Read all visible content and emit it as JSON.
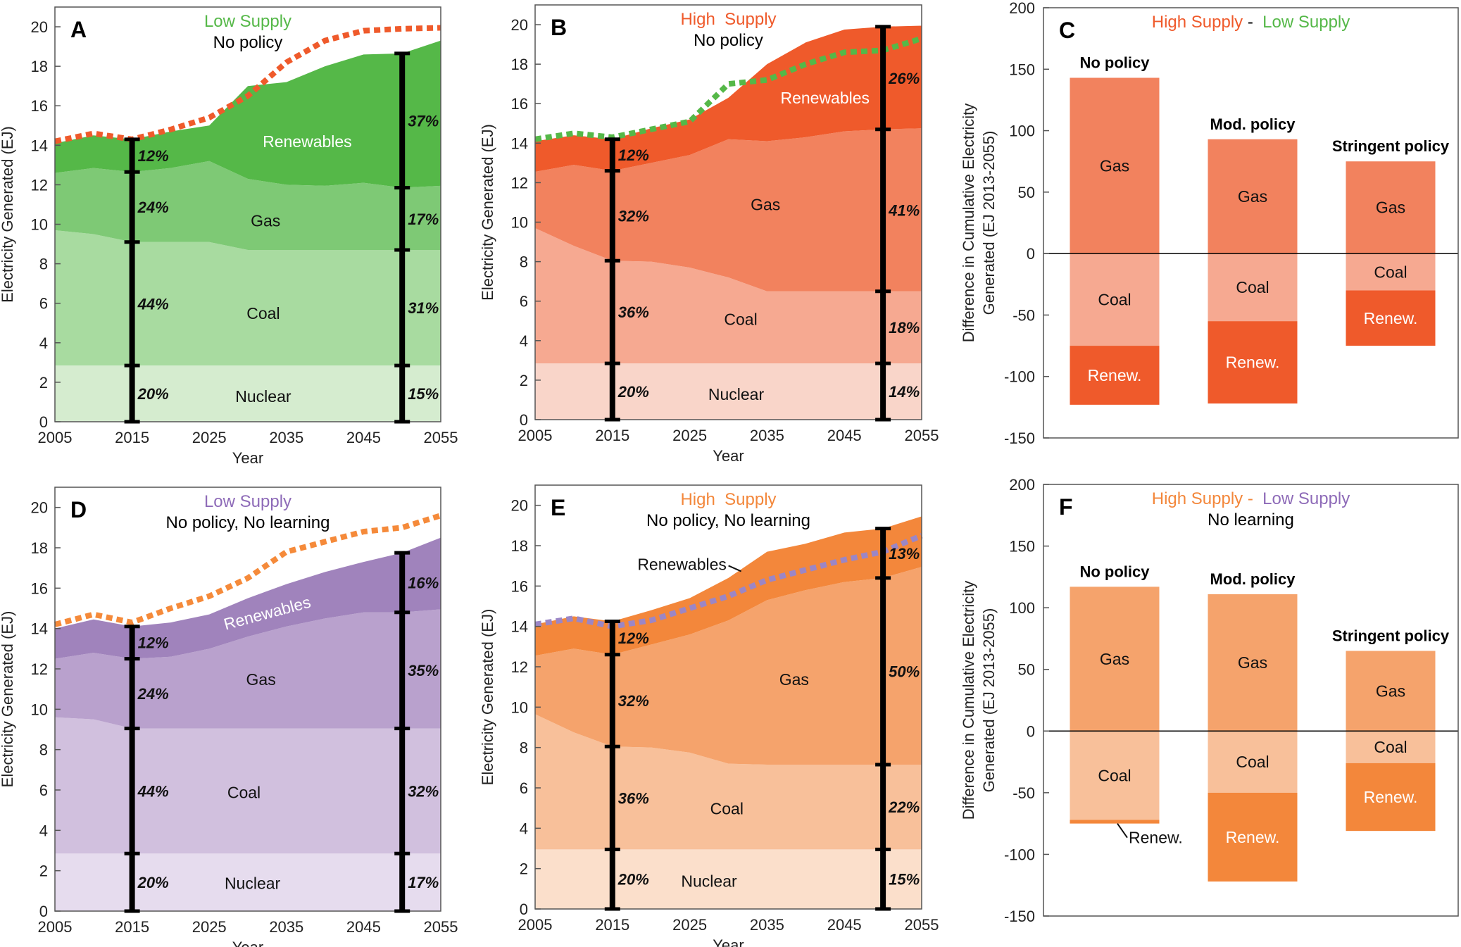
{
  "chart_data": [
    {
      "panel": "A",
      "type": "area",
      "stacked": true,
      "title_parts": [
        {
          "text": "Low Supply",
          "color": "#55b848"
        }
      ],
      "subtitle": "No policy",
      "xlabel": "Year",
      "ylabel": "Electricity Generated (EJ)",
      "xlim": [
        2005,
        2055
      ],
      "ylim": [
        0,
        21
      ],
      "xticks": [
        2005,
        2015,
        2025,
        2035,
        2045,
        2055
      ],
      "yticks": [
        0,
        2,
        4,
        6,
        8,
        10,
        12,
        14,
        16,
        18,
        20
      ],
      "x": [
        2005,
        2010,
        2015,
        2020,
        2025,
        2030,
        2035,
        2040,
        2045,
        2050,
        2055
      ],
      "series": [
        {
          "name": "Nuclear",
          "color": "#d5eccf",
          "values": [
            2.85,
            2.85,
            2.85,
            2.85,
            2.85,
            2.85,
            2.85,
            2.85,
            2.85,
            2.85,
            2.85
          ]
        },
        {
          "name": "Coal",
          "color": "#a8dba0",
          "values": [
            6.85,
            6.65,
            6.25,
            6.25,
            6.25,
            5.85,
            5.85,
            5.85,
            5.85,
            5.85,
            5.85
          ]
        },
        {
          "name": "Gas",
          "color": "#7ec975",
          "values": [
            2.9,
            3.35,
            3.55,
            3.75,
            4.1,
            3.6,
            3.3,
            3.25,
            3.4,
            3.15,
            3.25
          ]
        },
        {
          "name": "Renewables",
          "color": "#55b848",
          "values": [
            1.5,
            1.65,
            1.65,
            1.85,
            1.8,
            4.7,
            5.2,
            6.05,
            6.5,
            6.8,
            7.35
          ]
        }
      ],
      "comparison_line": {
        "color": "#ef5a2b",
        "style": "dotted",
        "values": [
          14.2,
          14.6,
          14.3,
          14.8,
          15.4,
          16.5,
          18.2,
          19.3,
          19.8,
          19.9,
          19.95
        ]
      },
      "share_bars": [
        {
          "year": 2015,
          "labels": [
            "20%",
            "44%",
            "24%",
            "12%"
          ]
        },
        {
          "year": 2050,
          "labels": [
            "15%",
            "31%",
            "17%",
            "37%"
          ]
        }
      ]
    },
    {
      "panel": "B",
      "type": "area",
      "stacked": true,
      "title_parts": [
        {
          "text": "High  Supply",
          "color": "#ef5a2b"
        }
      ],
      "subtitle": "No policy",
      "xlabel": "Year",
      "ylabel": "Electricity Generated (EJ)",
      "xlim": [
        2005,
        2055
      ],
      "ylim": [
        0,
        21
      ],
      "xticks": [
        2005,
        2015,
        2025,
        2035,
        2045,
        2055
      ],
      "yticks": [
        0,
        2,
        4,
        6,
        8,
        10,
        12,
        14,
        16,
        18,
        20
      ],
      "x": [
        2005,
        2010,
        2015,
        2020,
        2025,
        2030,
        2035,
        2040,
        2045,
        2050,
        2055
      ],
      "series": [
        {
          "name": "Nuclear",
          "color": "#f9d5c9",
          "values": [
            2.85,
            2.85,
            2.85,
            2.85,
            2.85,
            2.85,
            2.85,
            2.85,
            2.85,
            2.85,
            2.85
          ]
        },
        {
          "name": "Coal",
          "color": "#f6a991",
          "values": [
            6.85,
            5.95,
            5.2,
            5.15,
            4.85,
            4.35,
            3.65,
            3.65,
            3.65,
            3.65,
            3.65
          ]
        },
        {
          "name": "Gas",
          "color": "#f2825e",
          "values": [
            2.85,
            4.1,
            4.55,
            5.0,
            5.7,
            7.0,
            7.6,
            7.8,
            8.1,
            8.2,
            8.25
          ]
        },
        {
          "name": "Renewables",
          "color": "#ef5a2b",
          "values": [
            1.55,
            1.5,
            1.6,
            1.75,
            1.8,
            2.1,
            3.9,
            4.8,
            5.15,
            5.2,
            5.2
          ]
        }
      ],
      "comparison_line": {
        "color": "#55b848",
        "style": "dotted",
        "values": [
          14.2,
          14.5,
          14.3,
          14.7,
          15.1,
          17.0,
          17.2,
          18.0,
          18.6,
          18.7,
          19.3
        ]
      },
      "share_bars": [
        {
          "year": 2015,
          "labels": [
            "20%",
            "36%",
            "32%",
            "12%"
          ]
        },
        {
          "year": 2050,
          "labels": [
            "14%",
            "18%",
            "41%",
            "26%"
          ]
        }
      ]
    },
    {
      "panel": "C",
      "type": "bar",
      "stacked": true,
      "title_parts": [
        {
          "text": "High Supply",
          "color": "#ef5a2b"
        },
        {
          "text": " - ",
          "color": "#000000"
        },
        {
          "text": " Low Supply",
          "color": "#55b848"
        }
      ],
      "subtitle": "",
      "ylabel_lines": [
        "Difference in Cumulative Electricity",
        "Generated (EJ 2013-2055)"
      ],
      "ylim": [
        -150,
        200
      ],
      "yticks": [
        -150,
        -100,
        -50,
        0,
        50,
        100,
        150,
        200
      ],
      "categories": [
        "No policy",
        "Mod. policy",
        "Stringent policy"
      ],
      "series": [
        {
          "name": "Gas",
          "color": "#f2825e",
          "values": [
            143,
            93,
            75
          ]
        },
        {
          "name": "Coal",
          "color": "#f6a991",
          "values": [
            -75,
            -55,
            -30
          ]
        },
        {
          "name": "Renew.",
          "color": "#ef5a2b",
          "values": [
            -48,
            -67,
            -45
          ]
        }
      ]
    },
    {
      "panel": "D",
      "type": "area",
      "stacked": true,
      "title_parts": [
        {
          "text": "Low Supply",
          "color": "#8e6bb8"
        }
      ],
      "subtitle": "No policy, No learning",
      "xlabel": "Year",
      "ylabel": "Electricity Generated (EJ)",
      "xlim": [
        2005,
        2055
      ],
      "ylim": [
        0,
        21
      ],
      "xticks": [
        2005,
        2015,
        2025,
        2035,
        2045,
        2055
      ],
      "yticks": [
        0,
        2,
        4,
        6,
        8,
        10,
        12,
        14,
        16,
        18,
        20
      ],
      "x": [
        2005,
        2010,
        2015,
        2020,
        2025,
        2030,
        2035,
        2040,
        2045,
        2050,
        2055
      ],
      "series": [
        {
          "name": "Nuclear",
          "color": "#e6dcee",
          "values": [
            2.85,
            2.85,
            2.85,
            2.85,
            2.85,
            2.85,
            2.85,
            2.85,
            2.85,
            2.85,
            2.85
          ]
        },
        {
          "name": "Coal",
          "color": "#d1c0de",
          "values": [
            6.75,
            6.65,
            6.2,
            6.2,
            6.2,
            6.2,
            6.2,
            6.2,
            6.2,
            6.2,
            6.2
          ]
        },
        {
          "name": "Gas",
          "color": "#b9a1cd",
          "values": [
            2.9,
            3.3,
            3.45,
            3.55,
            3.95,
            4.55,
            5.05,
            5.45,
            5.75,
            5.75,
            5.9
          ]
        },
        {
          "name": "Renewables",
          "color": "#a083bc",
          "values": [
            1.5,
            1.65,
            1.6,
            1.7,
            1.7,
            1.9,
            2.1,
            2.3,
            2.5,
            2.95,
            3.55
          ]
        }
      ],
      "comparison_line": {
        "color": "#f58a3a",
        "style": "dotted",
        "values": [
          14.2,
          14.7,
          14.3,
          15.0,
          15.6,
          16.5,
          17.8,
          18.3,
          18.8,
          19.0,
          19.6
        ]
      },
      "share_bars": [
        {
          "year": 2015,
          "labels": [
            "20%",
            "44%",
            "24%",
            "12%"
          ]
        },
        {
          "year": 2050,
          "labels": [
            "17%",
            "32%",
            "35%",
            "16%"
          ]
        }
      ]
    },
    {
      "panel": "E",
      "type": "area",
      "stacked": true,
      "title_parts": [
        {
          "text": "High  Supply",
          "color": "#f3873b"
        }
      ],
      "subtitle": "No policy, No learning",
      "xlabel": "Year",
      "ylabel": "Electricity Generated (EJ)",
      "xlim": [
        2005,
        2055
      ],
      "ylim": [
        0,
        21
      ],
      "xticks": [
        2005,
        2015,
        2025,
        2035,
        2045,
        2055
      ],
      "yticks": [
        0,
        2,
        4,
        6,
        8,
        10,
        12,
        14,
        16,
        18,
        20
      ],
      "x": [
        2005,
        2010,
        2015,
        2020,
        2025,
        2030,
        2035,
        2040,
        2045,
        2050,
        2055
      ],
      "series": [
        {
          "name": "Nuclear",
          "color": "#fbdfcb",
          "values": [
            2.95,
            2.95,
            2.95,
            2.95,
            2.95,
            2.95,
            2.95,
            2.95,
            2.95,
            2.95,
            2.95
          ]
        },
        {
          "name": "Coal",
          "color": "#f8c09a",
          "values": [
            6.7,
            5.8,
            5.1,
            5.05,
            4.8,
            4.25,
            4.2,
            4.2,
            4.2,
            4.2,
            4.2
          ]
        },
        {
          "name": "Gas",
          "color": "#f5a36c",
          "values": [
            2.9,
            4.15,
            4.55,
            5.1,
            5.85,
            7.1,
            8.15,
            8.65,
            9.05,
            9.25,
            9.8
          ]
        },
        {
          "name": "Renewables",
          "color": "#f3873b",
          "values": [
            1.55,
            1.6,
            1.65,
            1.7,
            1.8,
            2.1,
            2.4,
            2.3,
            2.45,
            2.45,
            2.5
          ]
        }
      ],
      "comparison_line": {
        "color": "#9b86c6",
        "style": "dotted",
        "values": [
          14.1,
          14.4,
          14.0,
          14.3,
          14.9,
          15.5,
          16.3,
          16.8,
          17.3,
          17.7,
          18.5
        ]
      },
      "share_bars": [
        {
          "year": 2015,
          "labels": [
            "20%",
            "36%",
            "32%",
            "12%"
          ]
        },
        {
          "year": 2050,
          "labels": [
            "15%",
            "22%",
            "50%",
            "13%"
          ]
        }
      ]
    },
    {
      "panel": "F",
      "type": "bar",
      "stacked": true,
      "title_parts": [
        {
          "text": "High Supply - ",
          "color": "#f3873b"
        },
        {
          "text": " Low Supply",
          "color": "#8e6bb8"
        }
      ],
      "subtitle": "No learning",
      "ylabel_lines": [
        "Difference in Cumulative Electricity",
        "Generated (EJ 2013-2055)"
      ],
      "ylim": [
        -150,
        200
      ],
      "yticks": [
        -150,
        -100,
        -50,
        0,
        50,
        100,
        150,
        200
      ],
      "categories": [
        "No policy",
        "Mod. policy",
        "Stringent policy"
      ],
      "series": [
        {
          "name": "Gas",
          "color": "#f5a36c",
          "values": [
            117,
            111,
            65
          ]
        },
        {
          "name": "Coal",
          "color": "#f8c09a",
          "values": [
            -72,
            -50,
            -26
          ]
        },
        {
          "name": "Renew.",
          "color": "#f3873b",
          "values": [
            -3,
            -72,
            -55
          ]
        }
      ]
    }
  ]
}
